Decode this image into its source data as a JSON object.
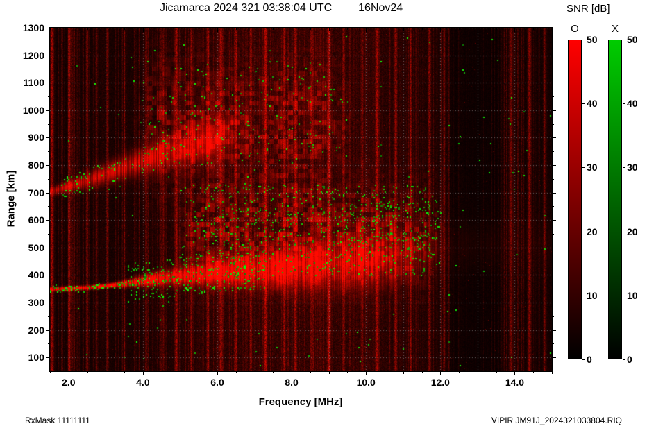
{
  "header": {
    "title": "Jicamarca 2024 321 03:38:04 UTC",
    "date": "16Nov24"
  },
  "colorbar_panel": {
    "title": "SNR [dB]",
    "bars": [
      {
        "label": "O",
        "color": "#ff0000",
        "ticks": [
          0,
          10,
          20,
          30,
          40,
          50
        ]
      },
      {
        "label": "X",
        "color": "#00cc00",
        "ticks": [
          0,
          10,
          20,
          30,
          40,
          50
        ]
      }
    ]
  },
  "footer": {
    "left": "RxMask 11111111",
    "right": "VIPIR  JM91J_2024321033804.RIQ"
  },
  "chart_data": {
    "type": "heatmap",
    "title": "Jicamarca 2024 321 03:38:04 UTC 16Nov24",
    "xlabel": "Frequency [MHz]",
    "ylabel": "Range [km]",
    "xlim": [
      1.5,
      15.0
    ],
    "ylim": [
      50,
      1300
    ],
    "xticks": [
      2,
      4,
      6,
      8,
      10,
      12,
      14
    ],
    "xtick_labels": [
      "2.0",
      "4.0",
      "6.0",
      "8.0",
      "10.0",
      "12.0",
      "14.0"
    ],
    "yticks": [
      100,
      200,
      300,
      400,
      500,
      600,
      700,
      800,
      900,
      1000,
      1100,
      1200,
      1300
    ],
    "ytick_labels": [
      "100",
      "200",
      "300",
      "400",
      "500",
      "600",
      "700",
      "800",
      "900",
      "1000",
      "1100",
      "1200",
      "1300"
    ],
    "grid": true,
    "legend_position": "right-colorbars",
    "colorbar": {
      "title": "SNR [dB]",
      "range": [
        0,
        50
      ],
      "ticks": [
        0,
        10,
        20,
        30,
        40,
        50
      ],
      "polarizations": [
        "O",
        "X"
      ],
      "o_color": "#ff0000",
      "x_color": "#00cc00"
    },
    "traces": {
      "o_trace_low": [
        [
          1.5,
          348
        ],
        [
          2.0,
          350
        ],
        [
          2.5,
          354
        ],
        [
          3.0,
          360
        ],
        [
          3.5,
          368
        ],
        [
          4.0,
          378
        ],
        [
          4.5,
          388
        ],
        [
          5.0,
          396
        ],
        [
          5.5,
          403
        ],
        [
          6.0,
          409
        ],
        [
          6.5,
          414
        ],
        [
          7.0,
          419
        ],
        [
          7.5,
          424
        ],
        [
          8.0,
          429
        ],
        [
          8.5,
          434
        ],
        [
          9.0,
          440
        ],
        [
          9.5,
          447
        ],
        [
          10.0,
          455
        ],
        [
          10.5,
          463
        ],
        [
          11.0,
          472
        ],
        [
          11.5,
          482
        ],
        [
          12.0,
          494
        ],
        [
          12.5,
          508
        ]
      ],
      "o_trace_high": [
        [
          1.5,
          702
        ],
        [
          2.0,
          722
        ],
        [
          2.5,
          744
        ],
        [
          3.0,
          768
        ],
        [
          3.5,
          792
        ],
        [
          4.0,
          815
        ],
        [
          4.5,
          838
        ],
        [
          5.0,
          860
        ],
        [
          5.5,
          880
        ],
        [
          6.0,
          896
        ],
        [
          6.5,
          910
        ],
        [
          7.0,
          922
        ]
      ]
    },
    "paint": {
      "seed": 20241116,
      "noise_floor": 0.045,
      "noise_rand": 0.2,
      "broadband": [
        8.2,
        2.6,
        0.1
      ],
      "quiet_gaps": [
        [
          12.25,
          13.6,
          0.45
        ]
      ],
      "rfi_bands": [
        [
          1.56,
          0.03,
          0.4
        ],
        [
          2.02,
          0.02,
          0.5
        ],
        [
          2.15,
          0.015,
          0.3
        ],
        [
          2.5,
          0.02,
          0.35
        ],
        [
          2.75,
          0.015,
          0.25
        ],
        [
          3.05,
          0.02,
          0.3
        ],
        [
          3.5,
          0.015,
          0.2
        ],
        [
          4.1,
          0.02,
          0.2
        ],
        [
          4.55,
          0.015,
          0.25
        ],
        [
          4.9,
          0.025,
          0.45
        ],
        [
          5.3,
          0.02,
          0.3
        ],
        [
          5.75,
          0.02,
          0.35
        ],
        [
          6.1,
          0.03,
          0.4
        ],
        [
          6.5,
          0.02,
          0.3
        ],
        [
          6.9,
          0.02,
          0.35
        ],
        [
          7.3,
          0.03,
          0.45
        ],
        [
          7.8,
          0.02,
          0.3
        ],
        [
          8.1,
          0.025,
          0.4
        ],
        [
          8.55,
          0.02,
          0.3
        ],
        [
          9.0,
          0.03,
          0.45
        ],
        [
          9.4,
          0.02,
          0.35
        ],
        [
          9.9,
          0.02,
          0.3
        ],
        [
          10.3,
          0.03,
          0.4
        ],
        [
          10.8,
          0.025,
          0.35
        ],
        [
          11.2,
          0.02,
          0.3
        ],
        [
          11.7,
          0.02,
          0.3
        ],
        [
          12.1,
          0.02,
          0.25
        ],
        [
          13.9,
          0.03,
          0.3
        ],
        [
          14.4,
          0.03,
          0.35
        ],
        [
          14.8,
          0.02,
          0.3
        ]
      ],
      "spread_region": {
        "f": [
          4.7,
          12.3
        ],
        "center": 545,
        "sigma": 115,
        "amp": 0.3
      },
      "upper_region": {
        "f": [
          3.6,
          9.8
        ],
        "center": 950,
        "sigma": 140,
        "amp": 0.26
      },
      "green": {
        "background": 0.0012,
        "trace_low_line": 0.22,
        "trace_low_broad": 0.11,
        "spread": 0.055,
        "trace_high": 0.055,
        "upper": 0.018,
        "patches": [
          {
            "f": [
              9.2,
              11.9
            ],
            "r": [
              470,
              670
            ],
            "p": 0.09
          }
        ]
      }
    }
  }
}
